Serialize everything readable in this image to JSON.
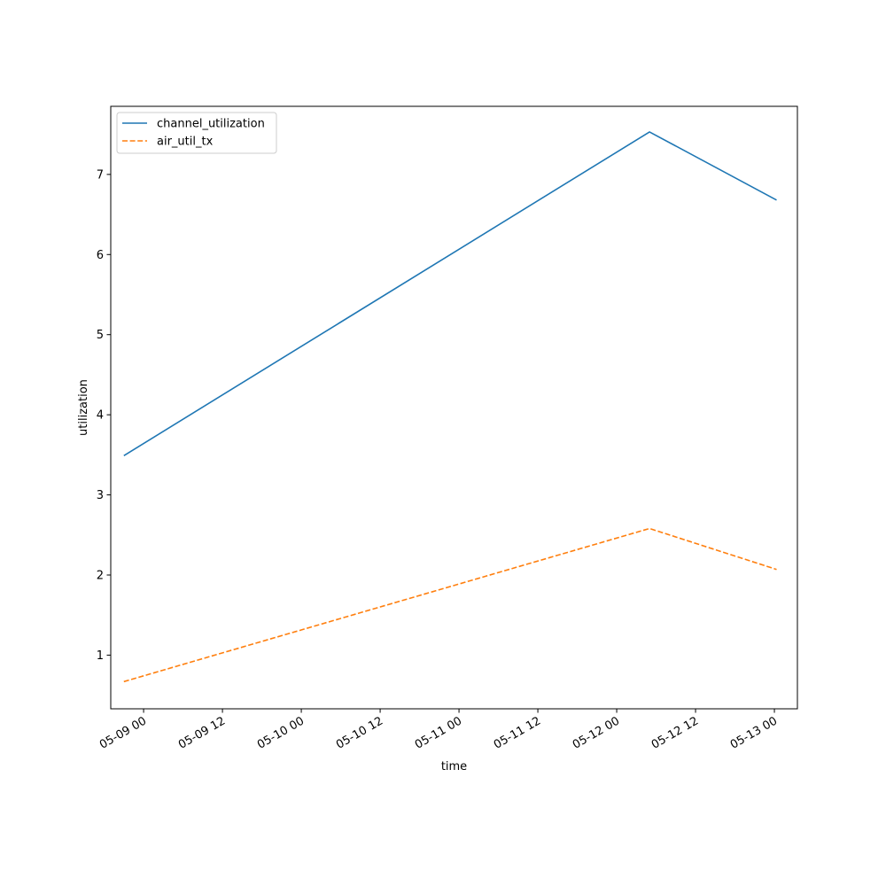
{
  "chart_data": {
    "type": "line",
    "title": "",
    "xlabel": "time",
    "ylabel": "utilization",
    "x_axis": {
      "type": "datetime",
      "range": [
        "2024-05-08T19:00",
        "2024-05-13T03:30"
      ],
      "ticks": [
        {
          "value": "2024-05-09T00:00",
          "label": "05-09 00"
        },
        {
          "value": "2024-05-09T12:00",
          "label": "05-09 12"
        },
        {
          "value": "2024-05-10T00:00",
          "label": "05-10 00"
        },
        {
          "value": "2024-05-10T12:00",
          "label": "05-10 12"
        },
        {
          "value": "2024-05-11T00:00",
          "label": "05-11 00"
        },
        {
          "value": "2024-05-11T12:00",
          "label": "05-11 12"
        },
        {
          "value": "2024-05-12T00:00",
          "label": "05-12 00"
        },
        {
          "value": "2024-05-12T12:00",
          "label": "05-12 12"
        },
        {
          "value": "2024-05-13T00:00",
          "label": "05-13 00"
        }
      ]
    },
    "y_axis": {
      "range": [
        0.33,
        7.85
      ],
      "ticks": [
        {
          "value": 1,
          "label": "1"
        },
        {
          "value": 2,
          "label": "2"
        },
        {
          "value": 3,
          "label": "3"
        },
        {
          "value": 4,
          "label": "4"
        },
        {
          "value": 5,
          "label": "5"
        },
        {
          "value": 6,
          "label": "6"
        },
        {
          "value": 7,
          "label": "7"
        }
      ]
    },
    "grid": false,
    "legend": {
      "position": "top-left"
    },
    "series": [
      {
        "name": "channel_utilization",
        "color": "#1f77b4",
        "dash": "solid",
        "points": [
          {
            "x": "2024-05-08T21:00",
            "y": 3.49
          },
          {
            "x": "2024-05-12T05:00",
            "y": 7.53
          },
          {
            "x": "2024-05-13T00:20",
            "y": 6.68
          }
        ]
      },
      {
        "name": "air_util_tx",
        "color": "#ff7f0e",
        "dash": "dashed",
        "points": [
          {
            "x": "2024-05-08T21:00",
            "y": 0.67
          },
          {
            "x": "2024-05-12T05:00",
            "y": 2.58
          },
          {
            "x": "2024-05-13T00:20",
            "y": 2.07
          }
        ]
      }
    ]
  }
}
